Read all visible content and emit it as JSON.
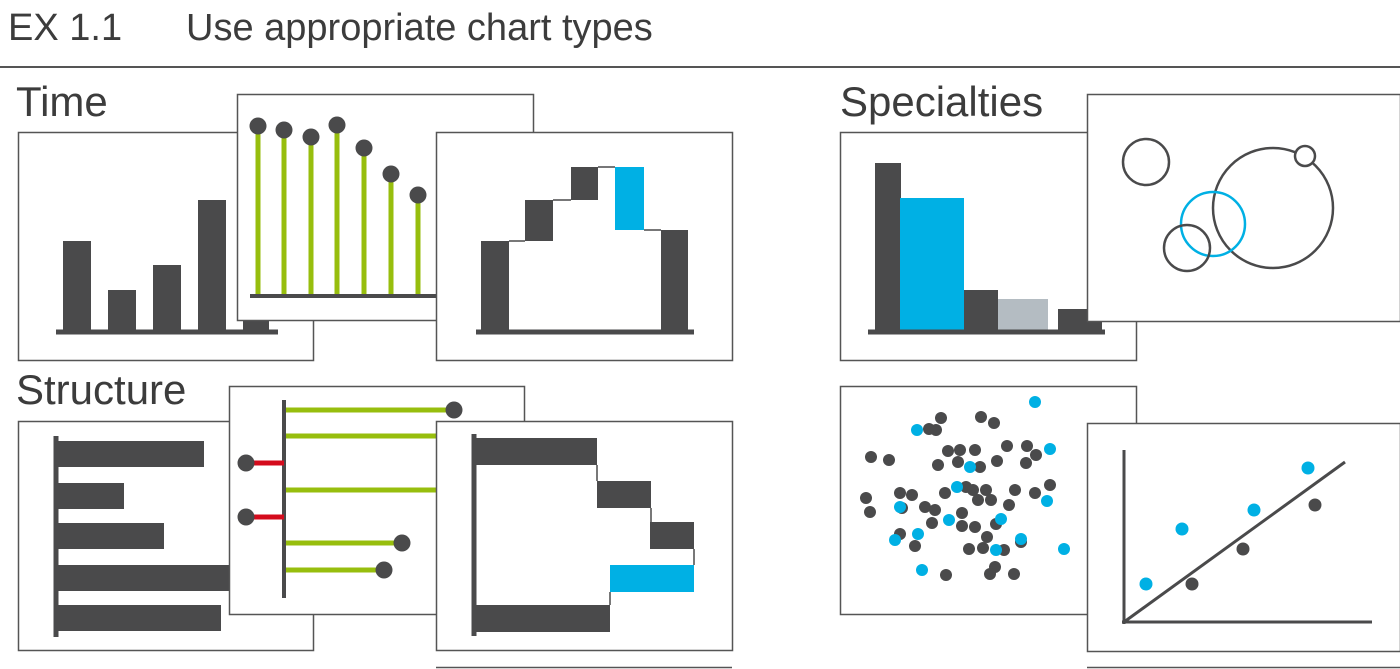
{
  "header": {
    "code": "EX 1.1",
    "title": "Use appropriate chart types"
  },
  "sections": {
    "time": "Time",
    "structure": "Structure",
    "specialties": "Specialties"
  },
  "colors": {
    "dark": "#4a4a4b",
    "green": "#97be0d",
    "blue": "#00b0e4",
    "grey": "#b4bcc2",
    "red": "#d40b1c",
    "frame": "#555555"
  },
  "icons": [
    "bar-chart-icon",
    "lollipop-chart-icon",
    "waterfall-chart-icon",
    "horizontal-bar-chart-icon",
    "deviation-lollipop-chart-icon",
    "horizontal-waterfall-chart-icon",
    "pareto-chart-icon",
    "bubble-chart-icon",
    "scatter-plot-icon",
    "regression-chart-icon"
  ]
}
